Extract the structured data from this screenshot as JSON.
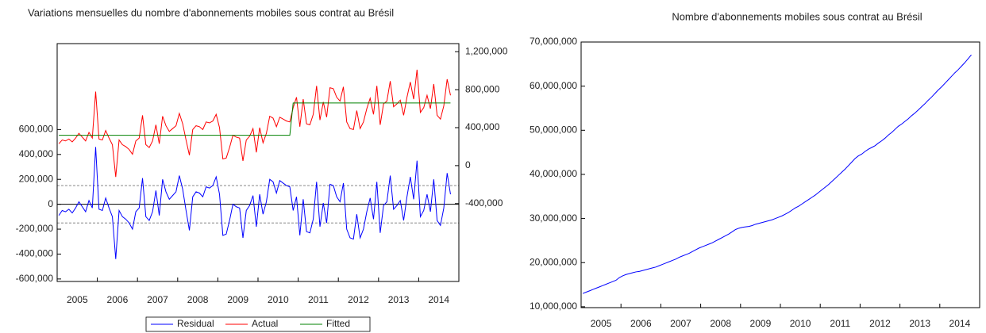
{
  "chart_data": [
    {
      "type": "line",
      "title": "Variations mensuelles du nombre d'abonnements mobiles sous contrat au Brésil",
      "categories": [
        "2005",
        null,
        null,
        null,
        null,
        null,
        null,
        null,
        null,
        null,
        null,
        null,
        "2006",
        null,
        null,
        null,
        null,
        null,
        null,
        null,
        null,
        null,
        null,
        null,
        "2007",
        null,
        null,
        null,
        null,
        null,
        null,
        null,
        null,
        null,
        null,
        null,
        "2008",
        null,
        null,
        null,
        null,
        null,
        null,
        null,
        null,
        null,
        null,
        null,
        "2009",
        null,
        null,
        null,
        null,
        null,
        null,
        null,
        null,
        null,
        null,
        null,
        "2010",
        null,
        null,
        null,
        null,
        null,
        null,
        null,
        null,
        null,
        null,
        null,
        "2011",
        null,
        null,
        null,
        null,
        null,
        null,
        null,
        null,
        null,
        null,
        null,
        "2012",
        null,
        null,
        null,
        null,
        null,
        null,
        null,
        null,
        null,
        null,
        null,
        "2013",
        null,
        null,
        null,
        null,
        null,
        null,
        null,
        null,
        null,
        null,
        null,
        "2014",
        null,
        null,
        null,
        null,
        null,
        null,
        null,
        null,
        null
      ],
      "series": [
        {
          "name": "Residual",
          "color": "#0000ff",
          "axis": "y",
          "values": [
            -90000,
            -50000,
            -60000,
            -40000,
            -70000,
            -30000,
            20000,
            -20000,
            -60000,
            30000,
            -30000,
            460000,
            -40000,
            -50000,
            50000,
            -30000,
            -100000,
            -440000,
            -50000,
            -100000,
            -120000,
            -150000,
            -200000,
            -60000,
            -30000,
            210000,
            -100000,
            -130000,
            -60000,
            110000,
            -90000,
            200000,
            100000,
            40000,
            70000,
            100000,
            230000,
            120000,
            -50000,
            -210000,
            60000,
            100000,
            90000,
            60000,
            140000,
            130000,
            150000,
            220000,
            80000,
            -250000,
            -240000,
            -130000,
            0,
            -20000,
            -30000,
            -270000,
            -50000,
            -10000,
            70000,
            -180000,
            80000,
            -80000,
            20000,
            200000,
            180000,
            90000,
            190000,
            170000,
            150000,
            140000,
            -50000,
            60000,
            -250000,
            40000,
            -220000,
            -230000,
            -120000,
            180000,
            -180000,
            10000,
            -150000,
            160000,
            150000,
            60000,
            20000,
            170000,
            -200000,
            -270000,
            -280000,
            -80000,
            -270000,
            -200000,
            -60000,
            50000,
            -120000,
            180000,
            -230000,
            -10000,
            20000,
            230000,
            -40000,
            -10000,
            30000,
            -130000,
            60000,
            220000,
            40000,
            350000,
            -100000,
            -50000,
            80000,
            -60000,
            200000,
            -130000,
            -170000,
            -30000,
            250000,
            80000
          ]
        },
        {
          "name": "Actual",
          "color": "#ff0000",
          "axis": "y2",
          "values": [
            230000,
            270000,
            260000,
            280000,
            250000,
            290000,
            340000,
            300000,
            260000,
            350000,
            290000,
            780000,
            280000,
            270000,
            370000,
            290000,
            220000,
            -120000,
            270000,
            220000,
            200000,
            170000,
            120000,
            260000,
            290000,
            530000,
            220000,
            190000,
            260000,
            430000,
            230000,
            520000,
            420000,
            360000,
            390000,
            420000,
            550000,
            440000,
            270000,
            110000,
            380000,
            420000,
            410000,
            380000,
            460000,
            450000,
            470000,
            540000,
            400000,
            70000,
            80000,
            190000,
            320000,
            300000,
            290000,
            50000,
            270000,
            310000,
            390000,
            140000,
            400000,
            240000,
            340000,
            520000,
            500000,
            410000,
            510000,
            490000,
            470000,
            460000,
            610000,
            720000,
            410000,
            700000,
            440000,
            430000,
            540000,
            840000,
            480000,
            670000,
            510000,
            820000,
            810000,
            720000,
            680000,
            830000,
            460000,
            390000,
            380000,
            580000,
            390000,
            460000,
            600000,
            710000,
            540000,
            840000,
            430000,
            650000,
            680000,
            890000,
            620000,
            650000,
            690000,
            530000,
            720000,
            880000,
            700000,
            1010000,
            560000,
            610000,
            740000,
            600000,
            860000,
            530000,
            490000,
            630000,
            910000,
            740000
          ]
        },
        {
          "name": "Fitted",
          "color": "#008000",
          "axis": "y2",
          "values": [
            320000,
            320000,
            320000,
            320000,
            320000,
            320000,
            320000,
            320000,
            320000,
            320000,
            320000,
            320000,
            320000,
            320000,
            320000,
            320000,
            320000,
            320000,
            320000,
            320000,
            320000,
            320000,
            320000,
            320000,
            320000,
            320000,
            320000,
            320000,
            320000,
            320000,
            320000,
            320000,
            320000,
            320000,
            320000,
            320000,
            320000,
            320000,
            320000,
            320000,
            320000,
            320000,
            320000,
            320000,
            320000,
            320000,
            320000,
            320000,
            320000,
            320000,
            320000,
            320000,
            320000,
            320000,
            320000,
            320000,
            320000,
            320000,
            320000,
            320000,
            320000,
            320000,
            320000,
            320000,
            320000,
            320000,
            320000,
            320000,
            320000,
            320000,
            660000,
            660000,
            660000,
            660000,
            660000,
            660000,
            660000,
            660000,
            660000,
            660000,
            660000,
            660000,
            660000,
            660000,
            660000,
            660000,
            660000,
            660000,
            660000,
            660000,
            660000,
            660000,
            660000,
            660000,
            660000,
            660000,
            660000,
            660000,
            660000,
            660000,
            660000,
            660000,
            660000,
            660000,
            660000,
            660000,
            660000,
            660000,
            660000,
            660000,
            660000,
            660000,
            660000,
            660000,
            660000,
            660000,
            660000,
            660000
          ]
        }
      ],
      "ylim": [
        -620000,
        1290000
      ],
      "yticks": [
        {
          "value": -600000,
          "label": "-600,000"
        },
        {
          "value": -400000,
          "label": "-400,000"
        },
        {
          "value": -200000,
          "label": "-200,000"
        },
        0,
        {
          "value": 200000,
          "label": "200,000"
        },
        {
          "value": 400000,
          "label": "400,000"
        },
        {
          "value": 600000,
          "label": "600,000"
        }
      ],
      "y2lim": [
        -1220000,
        1285000
      ],
      "y2ticks": [
        {
          "value": -400000,
          "label": "-400,000"
        },
        0,
        {
          "value": 400000,
          "label": "400,000"
        },
        {
          "value": 800000,
          "label": "800,000"
        },
        {
          "value": 1200000,
          "label": "1,200,000"
        }
      ],
      "reference_lines": [
        150000,
        -150000
      ],
      "legend": "bottom"
    },
    {
      "type": "line",
      "title": "Nombre d'abonnements mobiles sous contrat au Brésil",
      "categories": [
        "2005",
        null,
        null,
        null,
        null,
        null,
        null,
        null,
        null,
        null,
        null,
        null,
        "2006",
        null,
        null,
        null,
        null,
        null,
        null,
        null,
        null,
        null,
        null,
        null,
        "2007",
        null,
        null,
        null,
        null,
        null,
        null,
        null,
        null,
        null,
        null,
        null,
        "2008",
        null,
        null,
        null,
        null,
        null,
        null,
        null,
        null,
        null,
        null,
        null,
        "2009",
        null,
        null,
        null,
        null,
        null,
        null,
        null,
        null,
        null,
        null,
        null,
        "2010",
        null,
        null,
        null,
        null,
        null,
        null,
        null,
        null,
        null,
        null,
        null,
        "2011",
        null,
        null,
        null,
        null,
        null,
        null,
        null,
        null,
        null,
        null,
        null,
        "2012",
        null,
        null,
        null,
        null,
        null,
        null,
        null,
        null,
        null,
        null,
        null,
        "2013",
        null,
        null,
        null,
        null,
        null,
        null,
        null,
        null,
        null,
        null,
        null,
        "2014",
        null,
        null,
        null,
        null,
        null,
        null,
        null,
        null,
        null
      ],
      "series": [
        {
          "color": "#0000ff",
          "values": [
            13000000,
            13300000,
            13600000,
            13900000,
            14200000,
            14500000,
            14800000,
            15100000,
            15400000,
            15700000,
            16000000,
            16600000,
            17000000,
            17300000,
            17500000,
            17700000,
            17900000,
            18000000,
            18200000,
            18400000,
            18600000,
            18800000,
            19000000,
            19300000,
            19600000,
            19900000,
            20200000,
            20500000,
            20800000,
            21200000,
            21500000,
            21800000,
            22100000,
            22500000,
            22900000,
            23300000,
            23600000,
            23900000,
            24200000,
            24500000,
            24900000,
            25300000,
            25700000,
            26100000,
            26500000,
            27000000,
            27500000,
            27800000,
            28000000,
            28100000,
            28200000,
            28400000,
            28700000,
            28900000,
            29100000,
            29300000,
            29500000,
            29700000,
            30000000,
            30300000,
            30600000,
            31000000,
            31400000,
            31900000,
            32400000,
            32800000,
            33300000,
            33800000,
            34300000,
            34800000,
            35300000,
            35900000,
            36500000,
            37100000,
            37700000,
            38400000,
            39100000,
            39800000,
            40500000,
            41200000,
            42000000,
            42800000,
            43600000,
            44200000,
            44600000,
            45200000,
            45700000,
            46100000,
            46500000,
            47100000,
            47600000,
            48200000,
            48900000,
            49500000,
            50200000,
            50900000,
            51400000,
            52000000,
            52600000,
            53300000,
            53900000,
            54600000,
            55300000,
            56000000,
            56800000,
            57500000,
            58300000,
            59100000,
            59800000,
            60600000,
            61400000,
            62200000,
            63000000,
            63700000,
            64500000,
            65300000,
            66200000,
            67100000
          ]
        }
      ],
      "ylim": [
        9800000,
        70000000
      ],
      "yticks": [
        {
          "value": 10000000,
          "label": "10,000,000"
        },
        {
          "value": 20000000,
          "label": "20,000,000"
        },
        {
          "value": 30000000,
          "label": "30,000,000"
        },
        {
          "value": 40000000,
          "label": "40,000,000"
        },
        {
          "value": 50000000,
          "label": "50,000,000"
        },
        {
          "value": 60000000,
          "label": "60,000,000"
        },
        {
          "value": 70000000,
          "label": "70,000,000"
        }
      ]
    }
  ]
}
